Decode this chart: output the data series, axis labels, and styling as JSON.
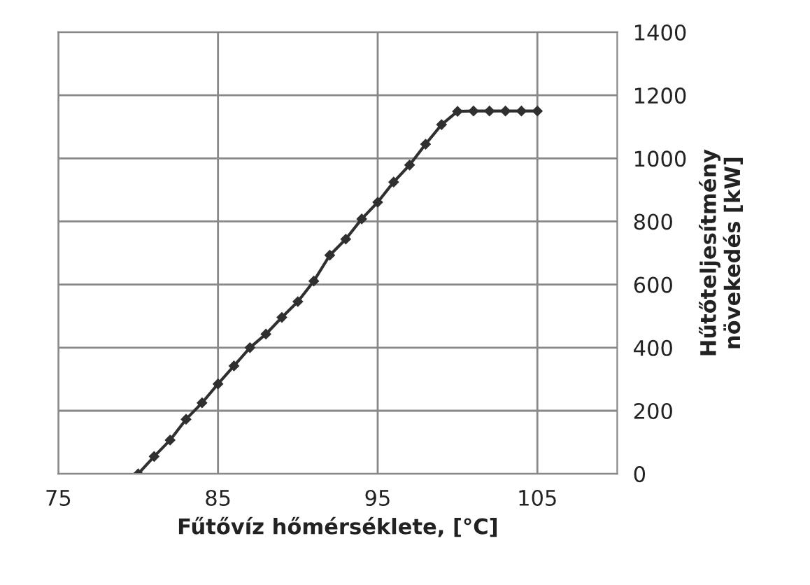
{
  "chart_data": {
    "type": "line",
    "xlabel": "Fűtővíz hőmérséklete, [°C]",
    "ylabel": "Hűtőteljesítmény\nnövekedés [kW]",
    "x": [
      80,
      81,
      82,
      83,
      84,
      85,
      86,
      87,
      88,
      89,
      90,
      91,
      92,
      93,
      94,
      95,
      96,
      97,
      98,
      99,
      100,
      101,
      102,
      103,
      104,
      105
    ],
    "series": [
      {
        "color": "#303030",
        "values": [
          0,
          55,
          107,
          173,
          225,
          285,
          342,
          400,
          443,
          496,
          546,
          611,
          693,
          744,
          808,
          861,
          925,
          979,
          1045,
          1107,
          1149,
          1150,
          1150,
          1150,
          1150,
          1150
        ]
      }
    ],
    "xlim": [
      75,
      110
    ],
    "xticks": [
      75,
      85,
      95,
      105
    ],
    "ylim": [
      0,
      1400
    ],
    "yticks": [
      0,
      200,
      400,
      600,
      800,
      1000,
      1200,
      1400
    ],
    "grid": true,
    "marker": "diamond",
    "line_style": "solid"
  }
}
